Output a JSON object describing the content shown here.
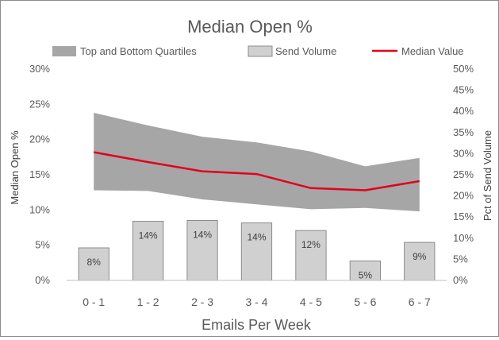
{
  "chart_data": {
    "type": "bar",
    "title": "Median Open %",
    "xlabel": "Emails Per Week",
    "ylabel": "Median Open %",
    "y2label": "Pct of Send Volume",
    "categories": [
      "0 - 1",
      "1 - 2",
      "2 - 3",
      "3 - 4",
      "4 - 5",
      "5 - 6",
      "6 - 7"
    ],
    "ylim": [
      0,
      30
    ],
    "y_ticks": [
      "0%",
      "5%",
      "10%",
      "15%",
      "20%",
      "25%",
      "30%"
    ],
    "y2lim": [
      0,
      50
    ],
    "y2_ticks": [
      "0%",
      "5%",
      "10%",
      "15%",
      "20%",
      "25%",
      "30%",
      "35%",
      "40%",
      "45%",
      "50%"
    ],
    "legend_position": "top",
    "grid": false,
    "series": [
      {
        "name": "Top and Bottom Quartiles",
        "type": "area",
        "axis": "left",
        "upper": [
          23.8,
          22.0,
          20.4,
          19.6,
          18.3,
          16.2,
          17.4
        ],
        "lower": [
          12.8,
          12.7,
          11.5,
          10.8,
          10.1,
          10.3,
          9.8
        ],
        "color": "#a6a6a6"
      },
      {
        "name": "Send Volume",
        "type": "bar",
        "axis": "right",
        "values": [
          7.7,
          14.0,
          14.2,
          13.6,
          11.8,
          4.6,
          9.0
        ],
        "labels": [
          "8%",
          "14%",
          "14%",
          "14%",
          "12%",
          "5%",
          "9%"
        ],
        "color": "#d0d0d0"
      },
      {
        "name": "Median Value",
        "type": "line",
        "axis": "left",
        "values": [
          18.2,
          16.8,
          15.5,
          15.1,
          13.1,
          12.8,
          14.1
        ],
        "color": "#e3001b"
      }
    ]
  }
}
